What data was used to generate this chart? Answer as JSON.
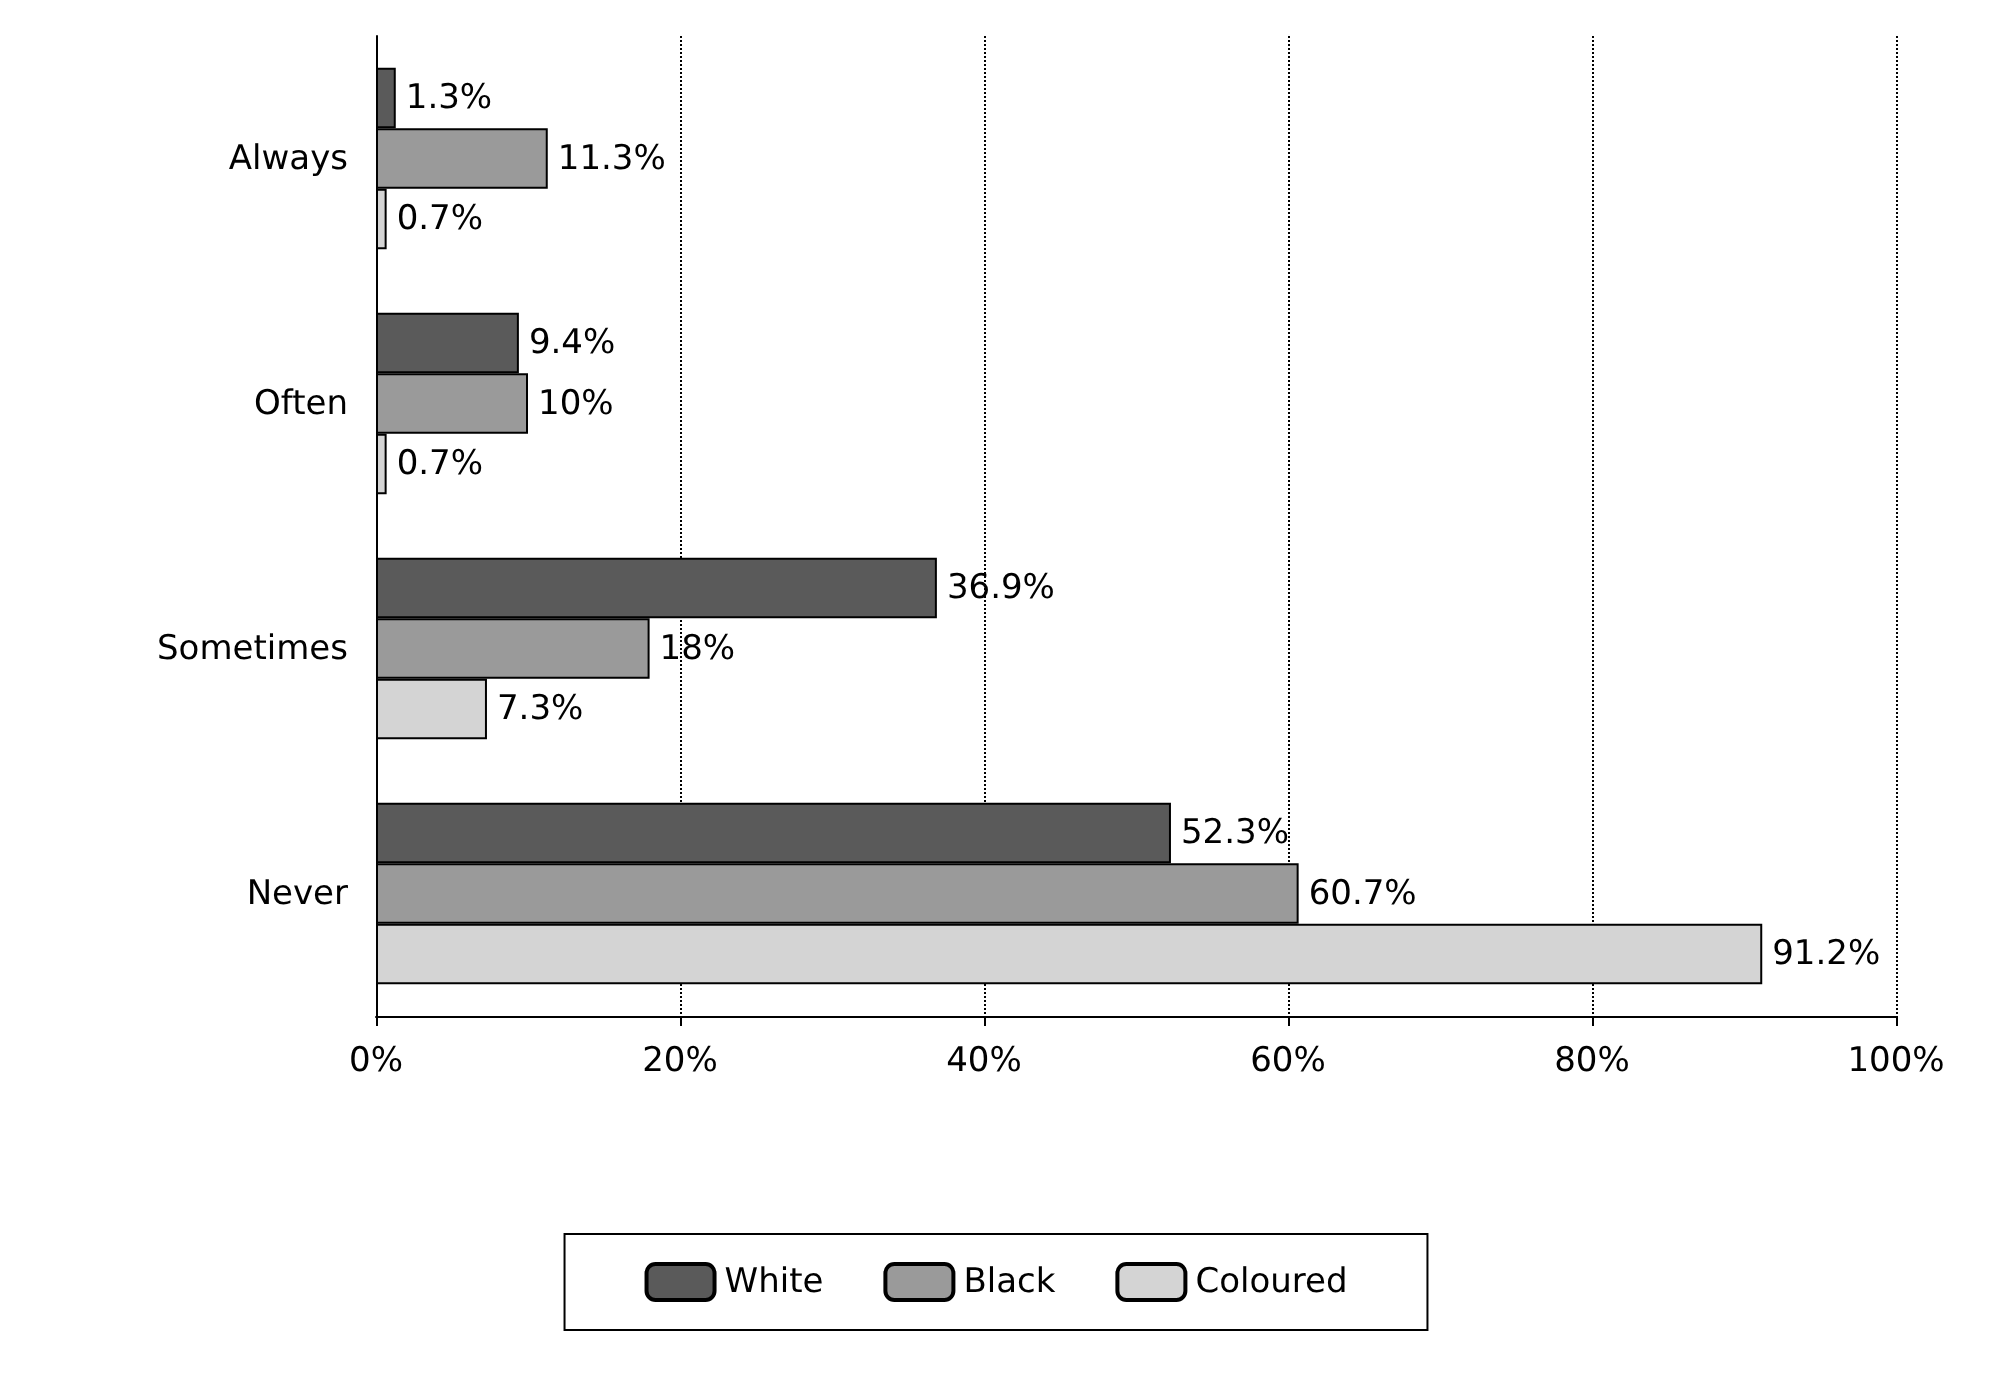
{
  "chart_data": {
    "type": "bar",
    "orientation": "horizontal",
    "categories": [
      "Always",
      "Often",
      "Sometimes",
      "Never"
    ],
    "series": [
      {
        "name": "White",
        "color": "#5a5a5a",
        "values": [
          1.3,
          9.4,
          36.9,
          52.3
        ],
        "value_labels": [
          "1.3%",
          "9.4%",
          "36.9%",
          "52.3%"
        ]
      },
      {
        "name": "Black",
        "color": "#9a9a9a",
        "values": [
          11.3,
          10,
          18,
          60.7
        ],
        "value_labels": [
          "11.3%",
          "10%",
          "18%",
          "60.7%"
        ]
      },
      {
        "name": "Coloured",
        "color": "#d4d4d4",
        "values": [
          0.7,
          0.7,
          7.3,
          91.2
        ],
        "value_labels": [
          "0.7%",
          "0.7%",
          "7.3%",
          "91.2%"
        ]
      }
    ],
    "xlim": [
      0,
      100
    ],
    "xticks": [
      {
        "value": 0,
        "label": "0%"
      },
      {
        "value": 20,
        "label": "20%"
      },
      {
        "value": 40,
        "label": "40%"
      },
      {
        "value": 60,
        "label": "60%"
      },
      {
        "value": 80,
        "label": "80%"
      },
      {
        "value": 100,
        "label": "100%"
      }
    ],
    "grid": "x",
    "legend": "bottom"
  }
}
